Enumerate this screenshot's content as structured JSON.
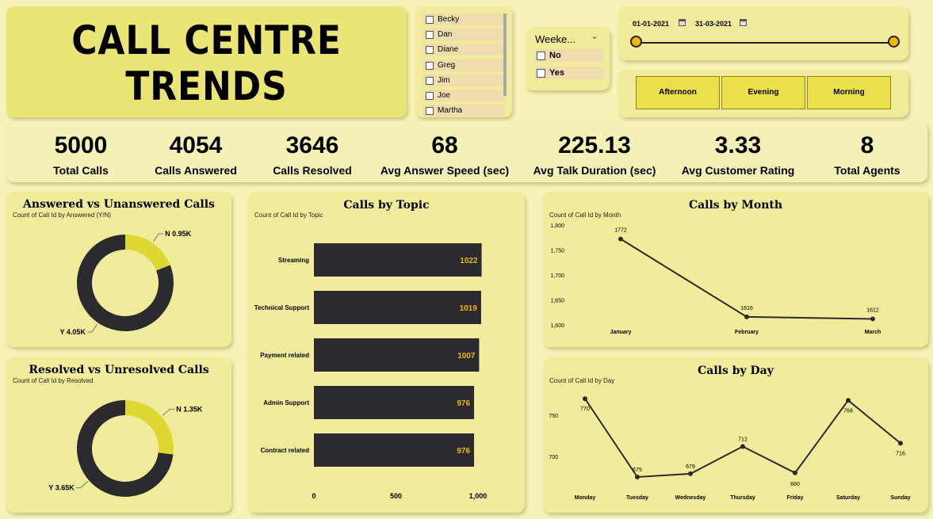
{
  "title": {
    "line1": "CALL CENTRE",
    "line2": "TRENDS"
  },
  "agent_slicer": {
    "items": [
      "Becky",
      "Dan",
      "Diane",
      "Greg",
      "Jim",
      "Joe",
      "Martha"
    ]
  },
  "weekend_slicer": {
    "header": "Weeke...",
    "options": [
      "No",
      "Yes"
    ]
  },
  "date_slicer": {
    "start": "01-01-2021",
    "end": "31-03-2021"
  },
  "time_slicer": {
    "options": [
      "Afternoon",
      "Evening",
      "Morning"
    ]
  },
  "kpis": [
    {
      "value": "5000",
      "label": "Total Calls"
    },
    {
      "value": "4054",
      "label": "Calls Answered"
    },
    {
      "value": "3646",
      "label": "Calls Resolved"
    },
    {
      "value": "68",
      "label": "Avg Answer Speed (sec)"
    },
    {
      "value": "225.13",
      "label": "Avg Talk Duration (sec)"
    },
    {
      "value": "3.33",
      "label": "Avg Customer Rating"
    },
    {
      "value": "8",
      "label": "Total Agents"
    }
  ],
  "colors": {
    "dark": "#2b2a2e",
    "accent": "#dfd832",
    "bar_label": "#f2b705",
    "background": "#f7f3b8",
    "card": "#f1ec9b"
  },
  "charts": {
    "answered": {
      "title": "Answered vs Unanswered Calls",
      "subtitle": "Count of Call Id by Answered (Y/N)"
    },
    "resolved": {
      "title": "Resolved vs Unresolved Calls",
      "subtitle": "Count of Call Id by Resolved"
    },
    "topic": {
      "title": "Calls by Topic",
      "subtitle": "Count of Call Id by Topic"
    },
    "month": {
      "title": "Calls by Month",
      "subtitle": "Count of Call Id by Month"
    },
    "day": {
      "title": "Calls by Day",
      "subtitle": "Count of Call Id by Day"
    }
  },
  "chart_data": [
    {
      "type": "pie",
      "id": "answered",
      "labels": [
        "N",
        "Y"
      ],
      "values": [
        0.95,
        4.05
      ],
      "data_labels": [
        "N 0.95K",
        "Y 4.05K"
      ]
    },
    {
      "type": "pie",
      "id": "resolved",
      "labels": [
        "N",
        "Y"
      ],
      "values": [
        1.35,
        3.65
      ],
      "data_labels": [
        "N 1.35K",
        "Y 3.65K"
      ]
    },
    {
      "type": "bar",
      "id": "topic",
      "orientation": "horizontal",
      "categories": [
        "Streaming",
        "Technical Support",
        "Payment related",
        "Admin Support",
        "Contract related"
      ],
      "values": [
        1022,
        1019,
        1007,
        976,
        976
      ],
      "xlim": [
        0,
        1000
      ],
      "xticks": [
        "0",
        "500",
        "1,000"
      ]
    },
    {
      "type": "line",
      "id": "month",
      "categories": [
        "January",
        "February",
        "March"
      ],
      "values": [
        1772,
        1616,
        1612
      ],
      "ylim": [
        1600,
        1800
      ],
      "yticks": [
        "1,600",
        "1,650",
        "1,700",
        "1,750",
        "1,800"
      ]
    },
    {
      "type": "line",
      "id": "day",
      "categories": [
        "Monday",
        "Tuesday",
        "Wednesday",
        "Thursday",
        "Friday",
        "Saturday",
        "Sunday"
      ],
      "values": [
        770,
        675,
        679,
        712,
        680,
        768,
        716
      ],
      "yticks": [
        "700",
        "750"
      ]
    }
  ]
}
